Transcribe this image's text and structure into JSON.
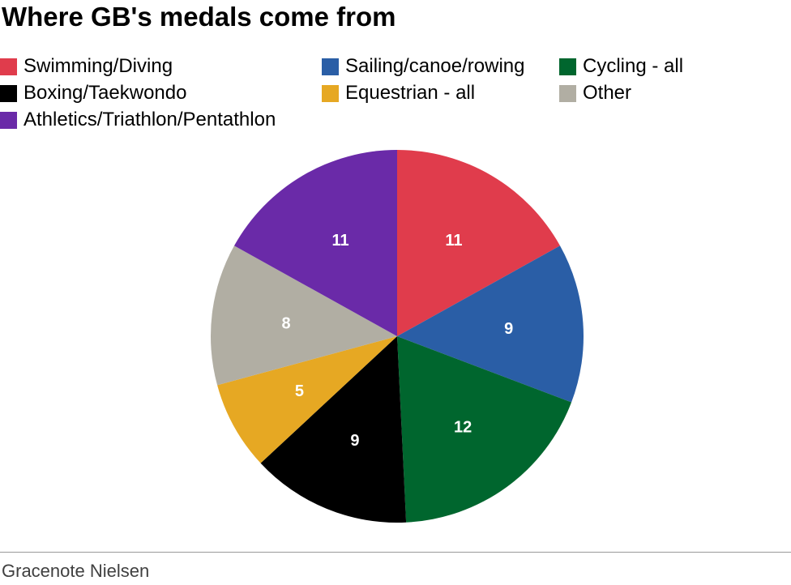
{
  "chart_data": {
    "type": "pie",
    "title": "Where GB's medals come from",
    "categories": [
      "Swimming/Diving",
      "Sailing/canoe/rowing",
      "Cycling - all",
      "Boxing/Taekwondo",
      "Equestrian - all",
      "Other",
      "Athletics/Triathlon/Pentathlon"
    ],
    "values": [
      11,
      9,
      12,
      9,
      5,
      8,
      11
    ],
    "colors": [
      "#e03c4c",
      "#2a5ea6",
      "#00662e",
      "#000000",
      "#e6a823",
      "#b1aea3",
      "#6a2aa8"
    ],
    "data_labels": [
      "11",
      "9",
      "12",
      "9",
      "5",
      "8",
      "11"
    ],
    "legend_placement": "top",
    "source": "Gracenote Nielsen"
  },
  "legend_order": [
    0,
    1,
    2,
    3,
    4,
    5,
    6
  ]
}
